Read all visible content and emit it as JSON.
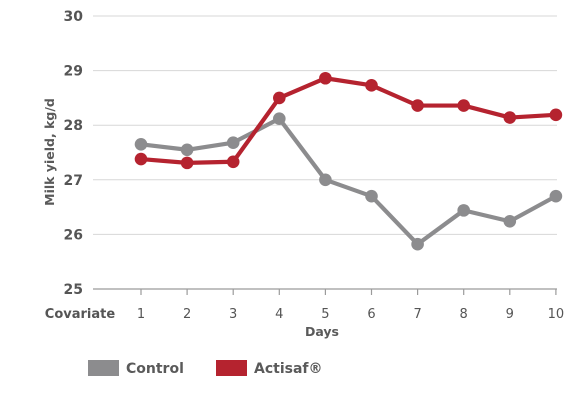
{
  "chart_data": {
    "type": "line",
    "xlabel": "Days",
    "ylabel": "Milk yield, kg/d",
    "categories": [
      "Covariate",
      "1",
      "2",
      "3",
      "4",
      "5",
      "6",
      "7",
      "8",
      "9",
      "10"
    ],
    "x_values": [
      1,
      2,
      3,
      4,
      5,
      6,
      7,
      8,
      9,
      10
    ],
    "ylim": [
      25,
      30
    ],
    "yticks": [
      "25",
      "26",
      "27",
      "28",
      "29",
      "30"
    ],
    "grid": true,
    "legend_position": "bottom-left",
    "series": [
      {
        "name": "Control",
        "color": "#8c8c8e",
        "values": [
          27.65,
          27.55,
          27.68,
          28.12,
          27.0,
          26.7,
          25.82,
          26.44,
          26.24,
          26.7
        ]
      },
      {
        "name": "Actisaf®",
        "color": "#b5232f",
        "values": [
          27.38,
          27.31,
          27.33,
          28.5,
          28.86,
          28.73,
          28.36,
          28.36,
          28.14,
          28.19
        ]
      }
    ]
  }
}
